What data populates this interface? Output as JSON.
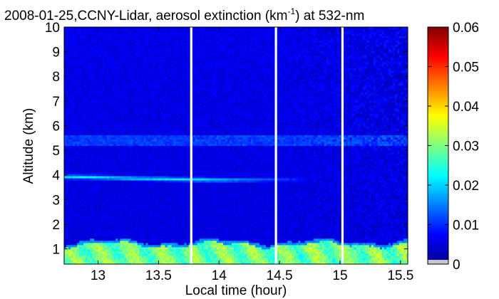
{
  "chart_data": {
    "type": "heatmap",
    "title_main": "2008-01-25,CCNY-Lidar, aerosol extinction (km",
    "title_sup": "-1",
    "title_tail": ") at 532-nm",
    "xlabel": "Local time (hour)",
    "ylabel": "Altitude (km)",
    "xlim": [
      12.72,
      15.56
    ],
    "ylim": [
      0.38,
      10
    ],
    "xticks": [
      "13",
      "13.5",
      "14",
      "14.5",
      "15",
      "15.5"
    ],
    "xtick_values": [
      13,
      13.5,
      14,
      14.5,
      15,
      15.5
    ],
    "yticks": [
      "1",
      "2",
      "3",
      "4",
      "5",
      "6",
      "7",
      "8",
      "9",
      "10"
    ],
    "ytick_values": [
      1,
      2,
      3,
      4,
      5,
      6,
      7,
      8,
      9,
      10
    ],
    "colorbar": {
      "min": 0,
      "max": 0.06,
      "ticks": [
        "0",
        "0.01",
        "0.02",
        "0.03",
        "0.04",
        "0.05",
        "0.06"
      ],
      "tick_values": [
        0,
        0.01,
        0.02,
        0.03,
        0.04,
        0.05,
        0.06
      ],
      "colormap": "jet"
    },
    "data_gaps_hours": [
      13.77,
      14.47,
      15.02
    ],
    "features": [
      {
        "altitude_range_km": [
          0.4,
          1.3
        ],
        "extinction_km-1": 0.028
      },
      {
        "altitude_range_km": [
          3.7,
          4.0
        ],
        "extinction_km-1": 0.02
      },
      {
        "altitude_range_km": [
          5.2,
          5.7
        ],
        "extinction_km-1": 0.012
      },
      {
        "altitude_range_km": [
          1.3,
          10
        ],
        "extinction_km-1": 0.006
      }
    ]
  }
}
